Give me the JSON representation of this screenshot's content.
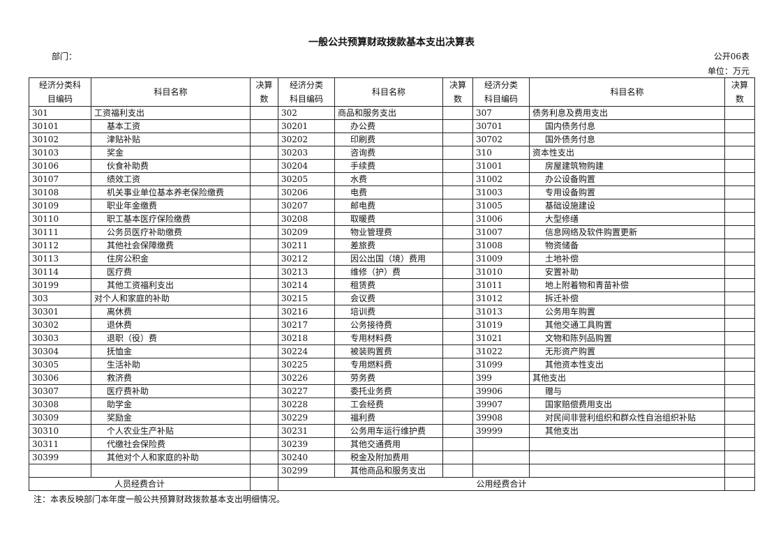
{
  "title": "一般公共预算财政拨款基本支出决算表",
  "department_label": "部门：",
  "table_no": "公开06表",
  "unit": "单位：万元",
  "headers": {
    "code": "经济分类科目编码",
    "code_a": "经济分类科",
    "code_b": "目编码",
    "code2_a": "经济分类",
    "code2_b": "科目编码",
    "name": "科目名称",
    "num_a": "决算",
    "num_b": "数"
  },
  "col1": [
    [
      "301",
      "工资福利支出"
    ],
    [
      "30101",
      "基本工资"
    ],
    [
      "30102",
      "津贴补贴"
    ],
    [
      "30103",
      "奖金"
    ],
    [
      "30106",
      "伙食补助费"
    ],
    [
      "30107",
      "绩效工资"
    ],
    [
      "30108",
      "机关事业单位基本养老保险缴费"
    ],
    [
      "30109",
      "职业年金缴费"
    ],
    [
      "30110",
      "职工基本医疗保险缴费"
    ],
    [
      "30111",
      "公务员医疗补助缴费"
    ],
    [
      "30112",
      "其他社会保障缴费"
    ],
    [
      "30113",
      "住房公积金"
    ],
    [
      "30114",
      "医疗费"
    ],
    [
      "30199",
      "其他工资福利支出"
    ],
    [
      "303",
      "对个人和家庭的补助"
    ],
    [
      "30301",
      "离休费"
    ],
    [
      "30302",
      "退休费"
    ],
    [
      "30303",
      "退职（役）费"
    ],
    [
      "30304",
      "抚恤金"
    ],
    [
      "30305",
      "生活补助"
    ],
    [
      "30306",
      "救济费"
    ],
    [
      "30307",
      "医疗费补助"
    ],
    [
      "30308",
      "助学金"
    ],
    [
      "30309",
      "奖励金"
    ],
    [
      "30310",
      "个人农业生产补贴"
    ],
    [
      "30311",
      "代缴社会保险费"
    ],
    [
      "30399",
      "其他对个人和家庭的补助"
    ]
  ],
  "col2": [
    [
      "302",
      "商品和服务支出"
    ],
    [
      "30201",
      "办公费"
    ],
    [
      "30202",
      "印刷费"
    ],
    [
      "30203",
      "咨询费"
    ],
    [
      "30204",
      "手续费"
    ],
    [
      "30205",
      "水费"
    ],
    [
      "30206",
      "电费"
    ],
    [
      "30207",
      "邮电费"
    ],
    [
      "30208",
      "取暖费"
    ],
    [
      "30209",
      "物业管理费"
    ],
    [
      "30211",
      "差旅费"
    ],
    [
      "30212",
      "因公出国（境）费用"
    ],
    [
      "30213",
      "维修（护）费"
    ],
    [
      "30214",
      "租赁费"
    ],
    [
      "30215",
      "会议费"
    ],
    [
      "30216",
      "培训费"
    ],
    [
      "30217",
      "公务接待费"
    ],
    [
      "30218",
      "专用材料费"
    ],
    [
      "30224",
      "被装购置费"
    ],
    [
      "30225",
      "专用燃料费"
    ],
    [
      "30226",
      "劳务费"
    ],
    [
      "30227",
      "委托业务费"
    ],
    [
      "30228",
      "工会经费"
    ],
    [
      "30229",
      "福利费"
    ],
    [
      "30231",
      "公务用车运行维护费"
    ],
    [
      "30239",
      "其他交通费用"
    ],
    [
      "30240",
      "税金及附加费用"
    ],
    [
      "30299",
      "其他商品和服务支出"
    ]
  ],
  "col3": [
    [
      "307",
      "债务利息及费用支出"
    ],
    [
      "30701",
      "国内债务付息"
    ],
    [
      "30702",
      "国外债务付息"
    ],
    [
      "310",
      "资本性支出"
    ],
    [
      "31001",
      "房屋建筑物购建"
    ],
    [
      "31002",
      "办公设备购置"
    ],
    [
      "31003",
      "专用设备购置"
    ],
    [
      "31005",
      "基础设施建设"
    ],
    [
      "31006",
      "大型修缮"
    ],
    [
      "31007",
      "信息网络及软件购置更新"
    ],
    [
      "31008",
      "物资储备"
    ],
    [
      "31009",
      "土地补偿"
    ],
    [
      "31010",
      "安置补助"
    ],
    [
      "31011",
      "地上附着物和青苗补偿"
    ],
    [
      "31012",
      "拆迁补偿"
    ],
    [
      "31013",
      "公务用车购置"
    ],
    [
      "31019",
      "其他交通工具购置"
    ],
    [
      "31021",
      "文物和陈列品购置"
    ],
    [
      "31022",
      "无形资产购置"
    ],
    [
      "31099",
      "其他资本性支出"
    ],
    [
      "399",
      "其他支出"
    ],
    [
      "39906",
      "赠与"
    ],
    [
      "39907",
      "国家赔偿费用支出"
    ],
    [
      "39908",
      "对民间非营利组织和群众性自治组织补贴"
    ],
    [
      "39999",
      "其他支出"
    ]
  ],
  "footer": {
    "personnel_total": "人员经费合计",
    "public_total": "公用经费合计"
  },
  "note": "注：本表反映部门本年度一般公共预算财政拨款基本支出明细情况。"
}
